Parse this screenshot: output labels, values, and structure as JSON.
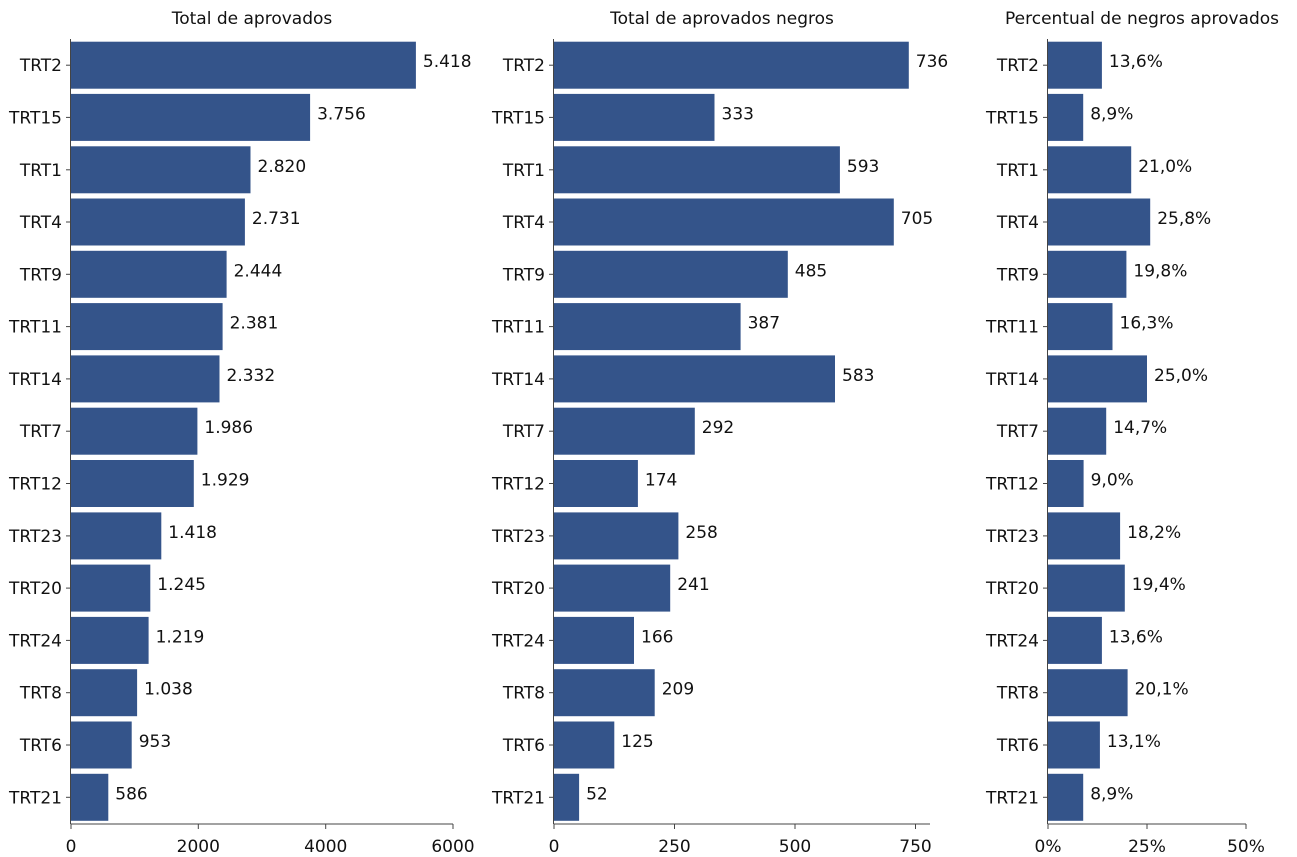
{
  "chart_data": [
    {
      "type": "bar",
      "orientation": "horizontal",
      "title": "Total de aprovados",
      "categories": [
        "TRT2",
        "TRT15",
        "TRT1",
        "TRT4",
        "TRT9",
        "TRT11",
        "TRT14",
        "TRT7",
        "TRT12",
        "TRT23",
        "TRT20",
        "TRT24",
        "TRT8",
        "TRT6",
        "TRT21"
      ],
      "values": [
        5418,
        3756,
        2820,
        2731,
        2444,
        2381,
        2332,
        1986,
        1929,
        1418,
        1245,
        1219,
        1038,
        953,
        586
      ],
      "value_labels": [
        "5.418",
        "3.756",
        "2.820",
        "2.731",
        "2.444",
        "2.381",
        "2.332",
        "1.986",
        "1.929",
        "1.418",
        "1.245",
        "1.219",
        "1.038",
        "953",
        "586"
      ],
      "xlim": [
        0,
        6000
      ],
      "xticks": [
        0,
        2000,
        4000,
        6000
      ],
      "xtick_labels": [
        "0",
        "2000",
        "4000",
        "6000"
      ],
      "grid": false,
      "color": "#34548a"
    },
    {
      "type": "bar",
      "orientation": "horizontal",
      "title": "Total de aprovados negros",
      "categories": [
        "TRT2",
        "TRT15",
        "TRT1",
        "TRT4",
        "TRT9",
        "TRT11",
        "TRT14",
        "TRT7",
        "TRT12",
        "TRT23",
        "TRT20",
        "TRT24",
        "TRT8",
        "TRT6",
        "TRT21"
      ],
      "values": [
        736,
        333,
        593,
        705,
        485,
        387,
        583,
        292,
        174,
        258,
        241,
        166,
        209,
        125,
        52
      ],
      "value_labels": [
        "736",
        "333",
        "593",
        "705",
        "485",
        "387",
        "583",
        "292",
        "174",
        "258",
        "241",
        "166",
        "209",
        "125",
        "52"
      ],
      "xlim": [
        0,
        780
      ],
      "xticks": [
        0,
        250,
        500,
        750
      ],
      "xtick_labels": [
        "0",
        "250",
        "500",
        "750"
      ],
      "grid": false,
      "color": "#34548a"
    },
    {
      "type": "bar",
      "orientation": "horizontal",
      "title": "Percentual de negros aprovados",
      "categories": [
        "TRT2",
        "TRT15",
        "TRT1",
        "TRT4",
        "TRT9",
        "TRT11",
        "TRT14",
        "TRT7",
        "TRT12",
        "TRT23",
        "TRT20",
        "TRT24",
        "TRT8",
        "TRT6",
        "TRT21"
      ],
      "values": [
        13.6,
        8.9,
        21.0,
        25.8,
        19.8,
        16.3,
        25.0,
        14.7,
        9.0,
        18.2,
        19.4,
        13.6,
        20.1,
        13.1,
        8.9
      ],
      "value_labels": [
        "13,6%",
        "8,9%",
        "21,0%",
        "25,8%",
        "19,8%",
        "16,3%",
        "25,0%",
        "14,7%",
        "9,0%",
        "18,2%",
        "19,4%",
        "13,6%",
        "20,1%",
        "13,1%",
        "8,9%"
      ],
      "xlim": [
        0,
        50
      ],
      "xticks": [
        0,
        25,
        50
      ],
      "xtick_labels": [
        "0%",
        "25%",
        "50%"
      ],
      "grid": false,
      "color": "#34548a"
    }
  ]
}
